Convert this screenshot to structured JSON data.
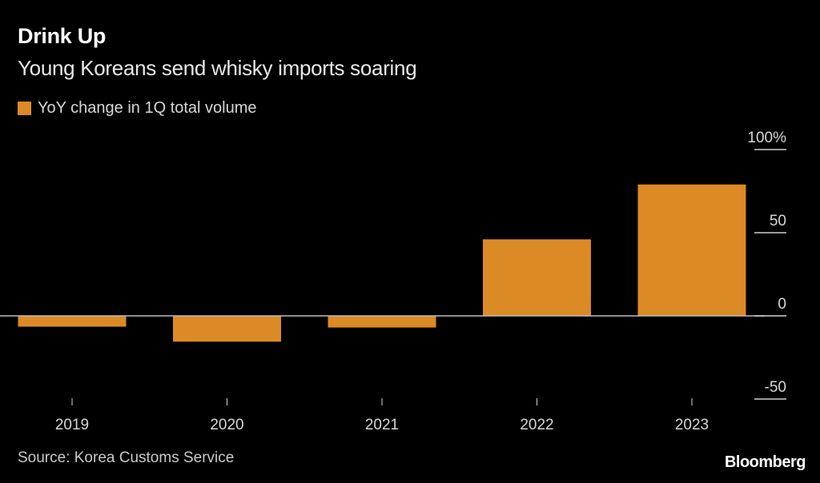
{
  "header": {
    "title": "Drink Up",
    "subtitle": "Young Koreans send whisky imports soaring"
  },
  "footer": {
    "source": "Source: Korea Customs Service",
    "brand": "Bloomberg"
  },
  "chart_data": {
    "type": "bar",
    "title": "Drink Up",
    "subtitle": "Young Koreans send whisky imports soaring",
    "categories": [
      "2019",
      "2020",
      "2021",
      "2022",
      "2023"
    ],
    "series": [
      {
        "name": "YoY change in 1Q total volume",
        "color": "#dc8a25",
        "values": [
          -6.5,
          -15.5,
          -7,
          46,
          79
        ]
      }
    ],
    "xlabel": "",
    "ylabel": "",
    "ylim": [
      -50,
      100
    ],
    "yticks": [
      100,
      50,
      0,
      -50
    ],
    "ytick_labels": [
      "100%",
      "50",
      "0",
      "-50"
    ],
    "yaxis_position": "right",
    "grid": false,
    "legend_position": "top-left",
    "source": "Source: Korea Customs Service"
  }
}
